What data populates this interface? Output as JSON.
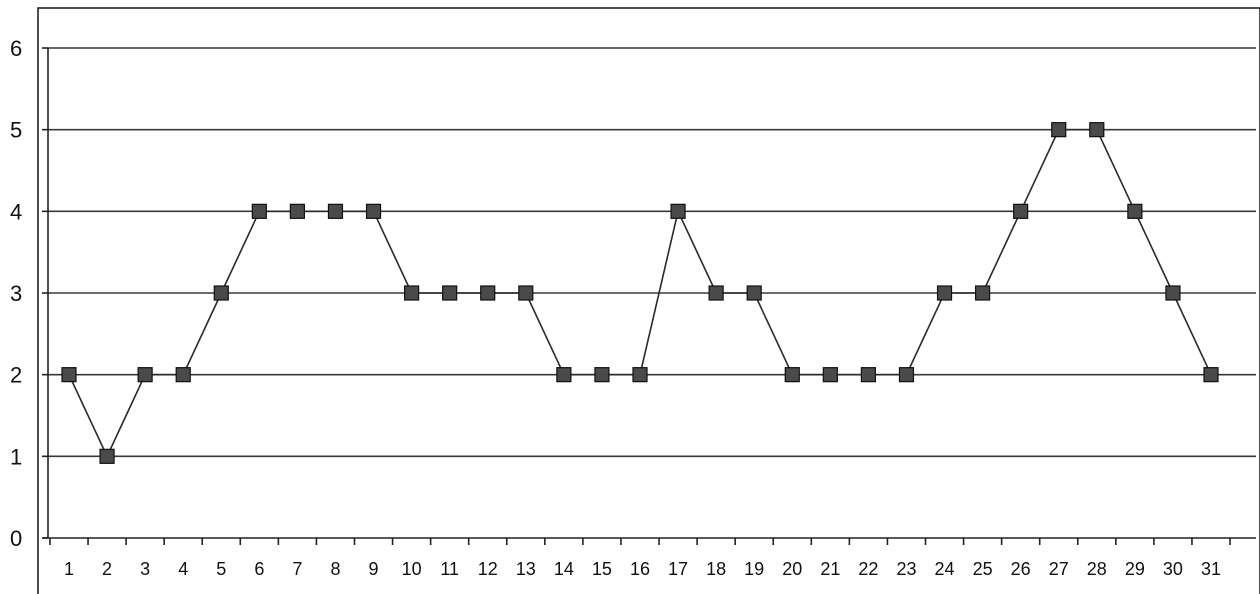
{
  "chart_data": {
    "type": "line",
    "title": "",
    "xlabel": "",
    "ylabel": "",
    "x": [
      "1",
      "2",
      "3",
      "4",
      "5",
      "6",
      "7",
      "8",
      "9",
      "10",
      "11",
      "12",
      "13",
      "14",
      "15",
      "16",
      "17",
      "18",
      "19",
      "20",
      "21",
      "22",
      "23",
      "24",
      "25",
      "26",
      "27",
      "28",
      "29",
      "30",
      "31"
    ],
    "series": [
      {
        "values": [
          2,
          1,
          2,
          2,
          3,
          4,
          4,
          4,
          4,
          3,
          3,
          3,
          3,
          2,
          2,
          2,
          4,
          3,
          3,
          2,
          2,
          2,
          2,
          3,
          3,
          4,
          5,
          5,
          4,
          3,
          2
        ]
      }
    ],
    "ylim": [
      0,
      6
    ],
    "yticks": [
      "0",
      "1",
      "2",
      "3",
      "4",
      "5",
      "6"
    ],
    "grid": true,
    "legend": "none",
    "colors": {
      "line": "#2a2a2a",
      "marker": "#4a4a4a",
      "grid": "#3a3a3a"
    },
    "marker": "square"
  }
}
